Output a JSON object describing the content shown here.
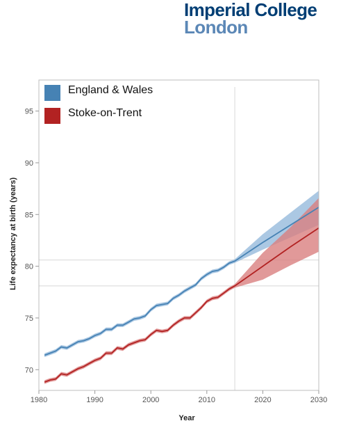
{
  "logo": {
    "line1": "Imperial College",
    "line2": "London"
  },
  "chart_data": {
    "type": "line",
    "title": "",
    "xlabel": "Year",
    "ylabel": "Life expectancy at birth (years)",
    "xlim": [
      1980,
      2030
    ],
    "ylim": [
      68,
      98
    ],
    "xticks": [
      1980,
      1990,
      2000,
      2010,
      2020,
      2030
    ],
    "yticks": [
      70,
      75,
      80,
      85,
      90,
      95
    ],
    "xtick_labels": [
      "1980",
      "1990",
      "2000",
      "2010",
      "2020",
      "2030"
    ],
    "ytick_labels": [
      "70",
      "75",
      "80",
      "85",
      "90",
      "95"
    ],
    "grid": false,
    "legend_position": "top-left",
    "reference_lines": {
      "vertical_x": 2015,
      "horizontal_y": [
        80.6,
        78.1
      ]
    },
    "series": [
      {
        "name": "England & Wales",
        "color": "#4682b4",
        "band_color": "#8fb5d9",
        "observed": {
          "x": [
            1981,
            1982,
            1983,
            1984,
            1985,
            1986,
            1987,
            1988,
            1989,
            1990,
            1991,
            1992,
            1993,
            1994,
            1995,
            1996,
            1997,
            1998,
            1999,
            2000,
            2001,
            2002,
            2003,
            2004,
            2005,
            2006,
            2007,
            2008,
            2009,
            2010,
            2011,
            2012,
            2013,
            2014,
            2015
          ],
          "y": [
            71.4,
            71.6,
            71.8,
            72.2,
            72.1,
            72.4,
            72.7,
            72.8,
            73.0,
            73.3,
            73.5,
            73.9,
            73.9,
            74.3,
            74.3,
            74.6,
            74.9,
            75.0,
            75.2,
            75.8,
            76.2,
            76.3,
            76.4,
            76.9,
            77.2,
            77.6,
            77.9,
            78.2,
            78.8,
            79.2,
            79.5,
            79.6,
            79.9,
            80.3,
            80.5
          ]
        },
        "projection": {
          "x": [
            2015,
            2020,
            2025,
            2030
          ],
          "median": [
            80.5,
            82.3,
            84.0,
            85.7
          ],
          "lower": [
            80.5,
            81.6,
            82.8,
            84.0
          ],
          "upper": [
            80.5,
            83.1,
            85.2,
            87.3
          ]
        }
      },
      {
        "name": "Stoke-on-Trent",
        "color": "#b22222",
        "band_color": "#d98080",
        "observed": {
          "x": [
            1981,
            1982,
            1983,
            1984,
            1985,
            1986,
            1987,
            1988,
            1989,
            1990,
            1991,
            1992,
            1993,
            1994,
            1995,
            1996,
            1997,
            1998,
            1999,
            2000,
            2001,
            2002,
            2003,
            2004,
            2005,
            2006,
            2007,
            2008,
            2009,
            2010,
            2011,
            2012,
            2013,
            2014,
            2015
          ],
          "y": [
            68.8,
            69.0,
            69.1,
            69.6,
            69.5,
            69.8,
            70.1,
            70.3,
            70.6,
            70.9,
            71.1,
            71.6,
            71.6,
            72.1,
            72.0,
            72.4,
            72.6,
            72.8,
            72.9,
            73.4,
            73.8,
            73.7,
            73.8,
            74.3,
            74.7,
            75.0,
            75.0,
            75.5,
            76.0,
            76.6,
            76.9,
            77.0,
            77.4,
            77.8,
            78.1
          ]
        },
        "projection": {
          "x": [
            2015,
            2020,
            2025,
            2030
          ],
          "median": [
            78.1,
            80.0,
            81.9,
            83.7
          ],
          "lower": [
            77.7,
            78.7,
            80.1,
            81.4
          ],
          "upper": [
            78.5,
            81.3,
            83.8,
            86.6
          ]
        }
      }
    ]
  }
}
